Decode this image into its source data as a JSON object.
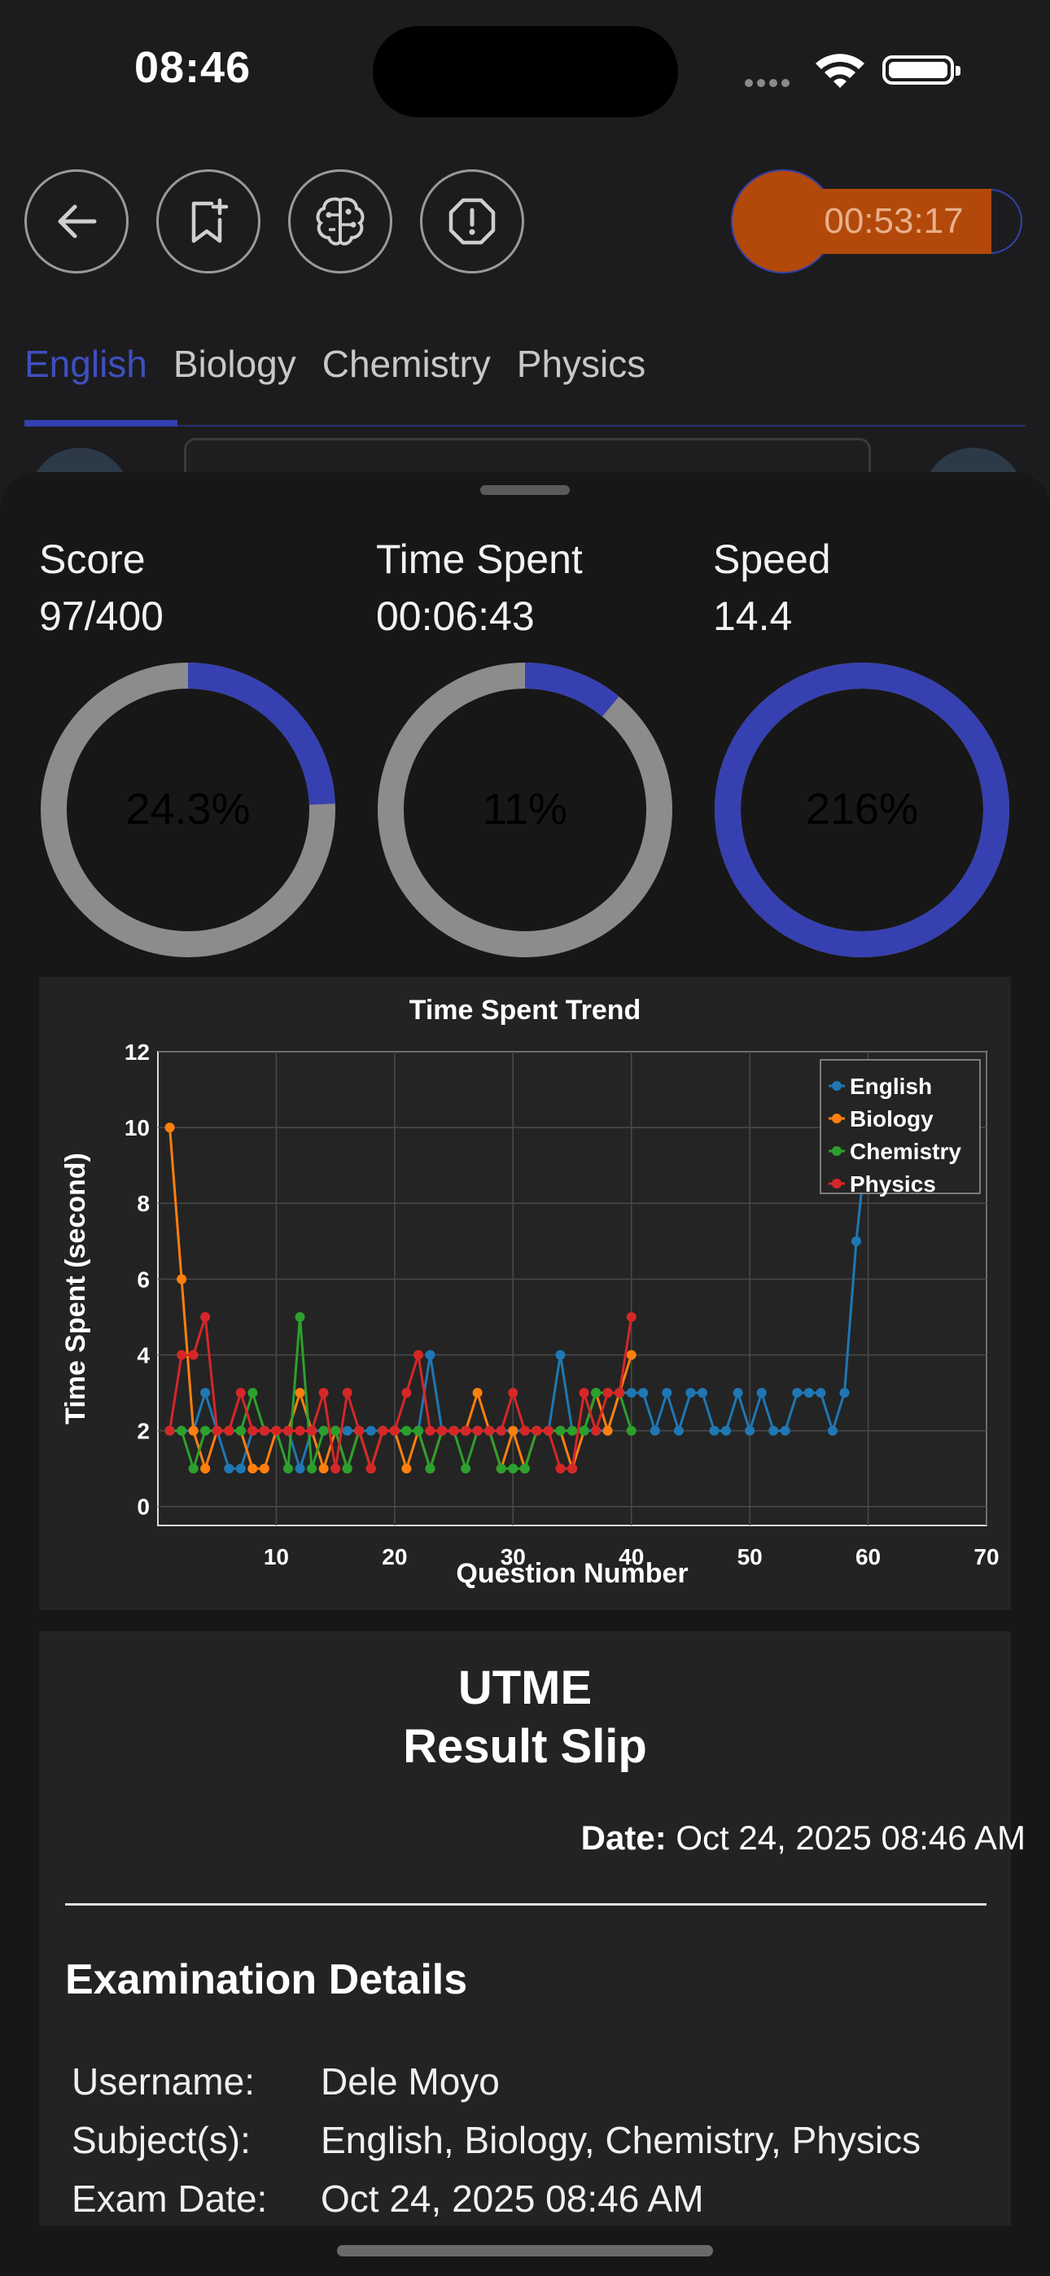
{
  "status_bar": {
    "time": "08:46"
  },
  "toolbar": {
    "back_icon": "back-arrow-icon",
    "bookmark_icon": "bookmark-add-icon",
    "brain_icon": "brain-icon",
    "report_icon": "alert-octagon-icon",
    "timer": "00:53:17"
  },
  "tabs": [
    {
      "label": "English",
      "active": true
    },
    {
      "label": "Biology",
      "active": false
    },
    {
      "label": "Chemistry",
      "active": false
    },
    {
      "label": "Physics",
      "active": false
    }
  ],
  "stats": [
    {
      "label": "Score",
      "value": "97/400",
      "percent_label": "24.3%",
      "fraction": 0.243
    },
    {
      "label": "Time Spent",
      "value": "00:06:43",
      "percent_label": "11%",
      "fraction": 0.11
    },
    {
      "label": "Speed",
      "value": "14.4",
      "percent_label": "216%",
      "fraction": 1.0
    }
  ],
  "colors": {
    "accent": "#3740b0",
    "ring_bg": "#8c8c8c",
    "timer": "#b2490a",
    "english": "#1f77b4",
    "biology": "#ff7f0e",
    "chemistry": "#2ca02c",
    "physics": "#d62728"
  },
  "chart_data": {
    "type": "line",
    "title": "Time Spent Trend",
    "xlabel": "Question Number",
    "ylabel": "Time Spent (second)",
    "xlim": [
      0,
      70
    ],
    "ylim": [
      -0.5,
      12
    ],
    "xticks": [
      10,
      20,
      30,
      40,
      50,
      60,
      70
    ],
    "yticks": [
      0,
      2,
      4,
      6,
      8,
      10,
      12
    ],
    "grid": true,
    "legend_position": "top-right",
    "series": [
      {
        "name": "English",
        "color": "#1f77b4",
        "x": [
          1,
          2,
          3,
          4,
          5,
          6,
          7,
          8,
          9,
          10,
          11,
          12,
          13,
          14,
          15,
          16,
          17,
          18,
          19,
          20,
          21,
          22,
          23,
          24,
          25,
          26,
          27,
          28,
          29,
          30,
          31,
          32,
          33,
          34,
          35,
          36,
          37,
          38,
          39,
          40,
          41,
          42,
          43,
          44,
          45,
          46,
          47,
          48,
          49,
          50,
          51,
          52,
          53,
          54,
          55,
          56,
          57,
          58,
          59,
          60
        ],
        "y": [
          2,
          2,
          2,
          3,
          2,
          1,
          1,
          2,
          2,
          2,
          2,
          1,
          2,
          2,
          2,
          2,
          2,
          2,
          2,
          2,
          2,
          2,
          4,
          2,
          2,
          2,
          2,
          2,
          2,
          2,
          2,
          2,
          2,
          4,
          2,
          2,
          2,
          2,
          3,
          3,
          3,
          2,
          3,
          2,
          3,
          3,
          2,
          2,
          3,
          2,
          3,
          2,
          2,
          3,
          3,
          3,
          2,
          3,
          7,
          10
        ]
      },
      {
        "name": "Biology",
        "color": "#ff7f0e",
        "x": [
          1,
          2,
          3,
          4,
          5,
          6,
          7,
          8,
          9,
          10,
          11,
          12,
          13,
          14,
          15,
          16,
          17,
          18,
          19,
          20,
          21,
          22,
          23,
          24,
          25,
          26,
          27,
          28,
          29,
          30,
          31,
          32,
          33,
          34,
          35,
          36,
          37,
          38,
          39,
          40
        ],
        "y": [
          10,
          6,
          2,
          1,
          2,
          2,
          2,
          1,
          1,
          2,
          2,
          3,
          2,
          1,
          2,
          1,
          2,
          1,
          2,
          2,
          1,
          2,
          1,
          2,
          2,
          2,
          3,
          2,
          1,
          2,
          1,
          2,
          2,
          2,
          1,
          2,
          3,
          2,
          3,
          4
        ]
      },
      {
        "name": "Chemistry",
        "color": "#2ca02c",
        "x": [
          1,
          2,
          3,
          4,
          5,
          6,
          7,
          8,
          9,
          10,
          11,
          12,
          13,
          14,
          15,
          16,
          17,
          18,
          19,
          20,
          21,
          22,
          23,
          24,
          25,
          26,
          27,
          28,
          29,
          30,
          31,
          32,
          33,
          34,
          35,
          36,
          37,
          38,
          39,
          40
        ],
        "y": [
          2,
          2,
          1,
          2,
          2,
          2,
          2,
          3,
          2,
          2,
          1,
          5,
          1,
          2,
          2,
          1,
          2,
          1,
          2,
          2,
          2,
          2,
          1,
          2,
          2,
          1,
          2,
          2,
          1,
          1,
          1,
          2,
          2,
          2,
          2,
          2,
          3,
          3,
          3,
          2
        ]
      },
      {
        "name": "Physics",
        "color": "#d62728",
        "x": [
          1,
          2,
          3,
          4,
          5,
          6,
          7,
          8,
          9,
          10,
          11,
          12,
          13,
          14,
          15,
          16,
          17,
          18,
          19,
          20,
          21,
          22,
          23,
          24,
          25,
          26,
          27,
          28,
          29,
          30,
          31,
          32,
          33,
          34,
          35,
          36,
          37,
          38,
          39,
          40
        ],
        "y": [
          2,
          4,
          4,
          5,
          2,
          2,
          3,
          2,
          2,
          2,
          2,
          2,
          2,
          3,
          1,
          3,
          2,
          1,
          2,
          2,
          3,
          4,
          2,
          2,
          2,
          2,
          2,
          2,
          2,
          3,
          2,
          2,
          2,
          1,
          1,
          3,
          2,
          3,
          3,
          5
        ]
      }
    ]
  },
  "slip": {
    "title_line1": "UTME",
    "title_line2": "Result Slip",
    "date_label": "Date:",
    "date_value": "Oct 24, 2025 08:46 AM",
    "section_title": "Examination Details",
    "details": [
      {
        "label": "Username:",
        "value": "Dele Moyo"
      },
      {
        "label": "Subject(s):",
        "value": "English, Biology, Chemistry, Physics"
      },
      {
        "label": "Exam Date:",
        "value": "Oct 24, 2025 08:46 AM"
      }
    ]
  }
}
